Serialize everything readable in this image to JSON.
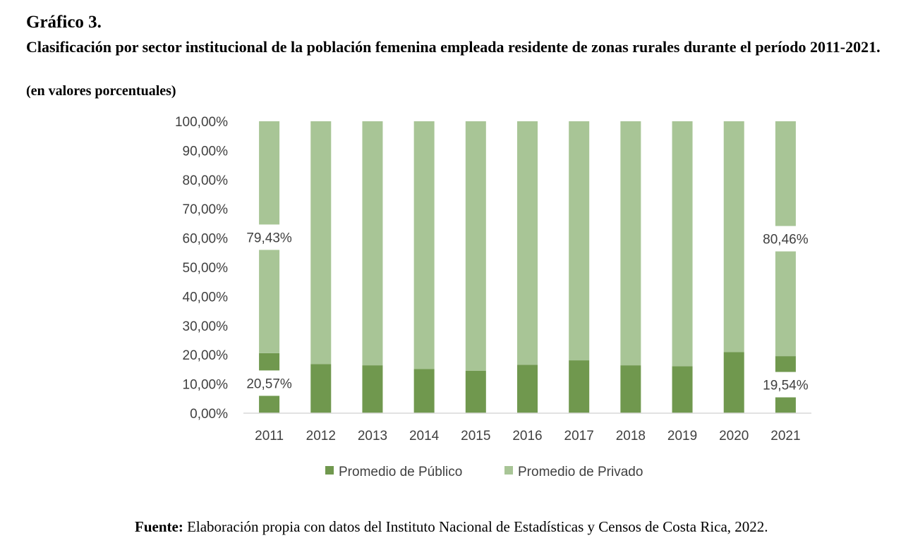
{
  "header": {
    "label": "Gráfico 3.",
    "title": "Clasificación por sector institucional de la población femenina empleada residente de zonas rurales durante el período 2011-2021.",
    "subtitle": "(en valores porcentuales)"
  },
  "source": {
    "label": "Fuente:",
    "text": " Elaboración propia con datos del Instituto Nacional de Estadísticas y Censos de Costa Rica, 2022."
  },
  "colors": {
    "publico": "#70984E",
    "privado": "#A8C596",
    "axis": "#D9D9D9",
    "label_text": "#404040"
  },
  "chart_data": {
    "type": "bar",
    "stacked": true,
    "title": "",
    "xlabel": "",
    "ylabel": "",
    "ylim": [
      0,
      100
    ],
    "y_tick_labels": [
      "0,00%",
      "10,00%",
      "20,00%",
      "30,00%",
      "40,00%",
      "50,00%",
      "60,00%",
      "70,00%",
      "80,00%",
      "90,00%",
      "100,00%"
    ],
    "categories": [
      "2011",
      "2012",
      "2013",
      "2014",
      "2015",
      "2016",
      "2017",
      "2018",
      "2019",
      "2020",
      "2021"
    ],
    "series": [
      {
        "name": "Promedio de Público",
        "color": "#70984E",
        "values": [
          20.57,
          16.8,
          16.4,
          15.1,
          14.5,
          16.6,
          18.1,
          16.4,
          16.1,
          20.9,
          19.54
        ]
      },
      {
        "name": "Promedio de Privado",
        "color": "#A8C596",
        "values": [
          79.43,
          83.2,
          83.6,
          84.9,
          85.5,
          83.4,
          81.9,
          83.6,
          83.9,
          79.1,
          80.46
        ]
      }
    ],
    "data_labels": [
      {
        "series": 0,
        "index": 0,
        "text": "20,57%"
      },
      {
        "series": 1,
        "index": 0,
        "text": "79,43%"
      },
      {
        "series": 0,
        "index": 10,
        "text": "19,54%"
      },
      {
        "series": 1,
        "index": 10,
        "text": "80,46%"
      }
    ],
    "legend": {
      "position": "bottom",
      "entries": [
        "Promedio de Público",
        "Promedio de Privado"
      ]
    },
    "grid": false
  }
}
